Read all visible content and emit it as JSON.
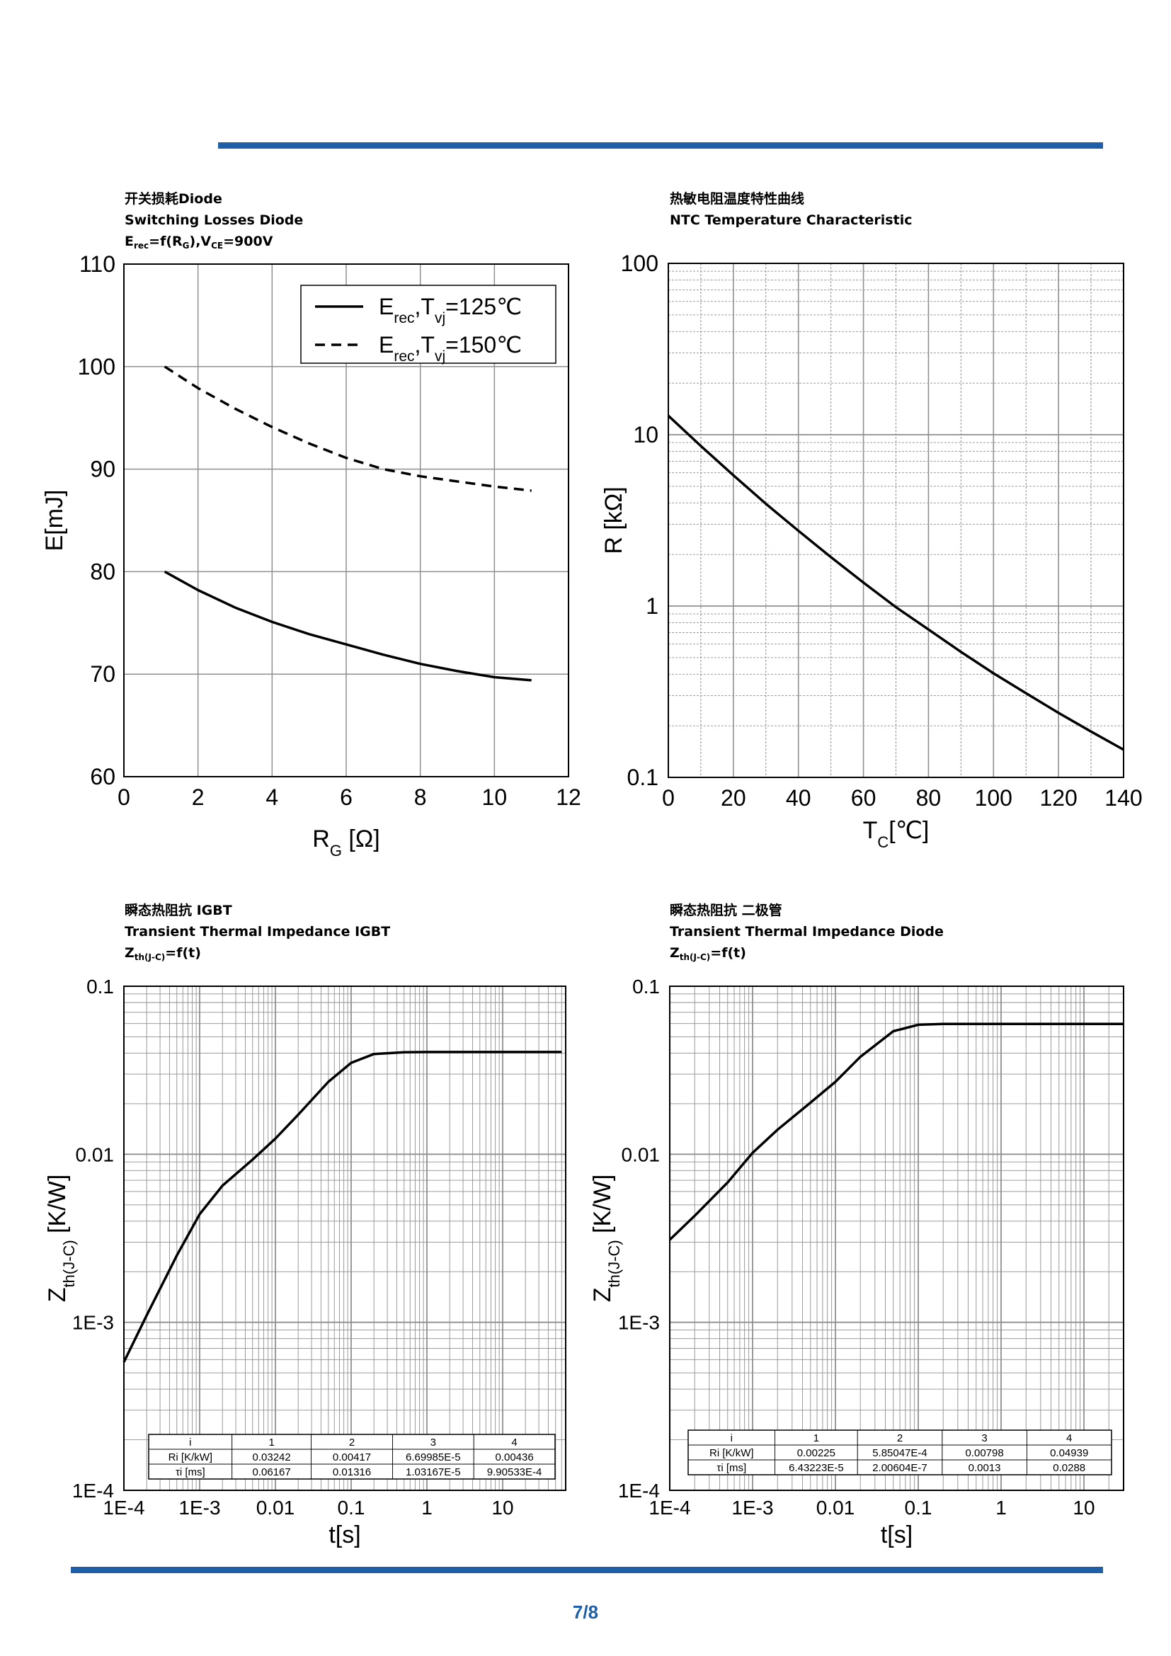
{
  "page_number": "7/8",
  "colors": {
    "rule": "#1f5fa7",
    "grid": "#8f8f8f",
    "curve": "#000000",
    "page_number": "#1f5fa7"
  },
  "chart1": {
    "cn_title": "开关损耗Diode",
    "en_title": "Switching Losses Diode",
    "formula": {
      "a": "E",
      "a_sub": "rec",
      "b": "=f(R",
      "b_sub": "G",
      "c": "),V",
      "c_sub": "CE",
      "d": "=900V"
    }
  },
  "chart2": {
    "cn_title": "热敏电阻温度特性曲线",
    "en_title": "NTC Temperature Characteristic"
  },
  "chart3": {
    "cn_title": "瞬态热阻抗 IGBT",
    "en_title": "Transient Thermal Impedance IGBT",
    "formula": {
      "a": "Z",
      "a_sub": "th(J-C)",
      "b": "=f(t)"
    }
  },
  "chart4": {
    "cn_title": "瞬态热阻抗 二极管",
    "en_title": "Transient Thermal Impedance Diode",
    "formula": {
      "a": "Z",
      "a_sub": "th(J-C)",
      "b": "=f(t)"
    }
  },
  "chart_data": [
    {
      "type": "line",
      "title": "Switching Losses Diode",
      "xlabel": "R",
      "xlabel_sub": "G",
      "xlabel_unit": " [Ω]",
      "ylabel": "E[mJ]",
      "xlim": [
        0,
        12
      ],
      "ylim": [
        60,
        110
      ],
      "xticks": [
        "0",
        "2",
        "4",
        "6",
        "8",
        "10",
        "12"
      ],
      "yticks": [
        "60",
        "70",
        "80",
        "90",
        "100",
        "110"
      ],
      "legend_position": "top-right",
      "series": [
        {
          "name": "Erec,Tvj=125℃",
          "legend": {
            "a": "E",
            "a_sub": "rec",
            "b": ",T",
            "b_sub": "vj",
            "c": "=125℃"
          },
          "style": "solid",
          "x": [
            1.1,
            2,
            3,
            4,
            5,
            6,
            7,
            8,
            9,
            10,
            11
          ],
          "y": [
            80.0,
            78.2,
            76.5,
            75.1,
            73.9,
            72.9,
            71.9,
            71.0,
            70.3,
            69.7,
            69.4
          ]
        },
        {
          "name": "Erec,Tvj=150℃",
          "legend": {
            "a": "E",
            "a_sub": "rec",
            "b": ",T",
            "b_sub": "vj",
            "c": "=150℃"
          },
          "style": "dashed",
          "x": [
            1.1,
            2,
            3,
            4,
            5,
            6,
            7,
            8,
            9,
            10,
            11
          ],
          "y": [
            100.0,
            97.9,
            95.9,
            94.1,
            92.5,
            91.1,
            90.0,
            89.3,
            88.8,
            88.3,
            87.9
          ]
        }
      ]
    },
    {
      "type": "line",
      "title": "NTC Temperature Characteristic",
      "xlabel": "T",
      "xlabel_sub": "C",
      "xlabel_unit": "[℃]",
      "ylabel": "R [kΩ]",
      "xlim": [
        0,
        140
      ],
      "ylim": [
        0.1,
        100
      ],
      "yscale": "log",
      "xticks": [
        "0",
        "20",
        "40",
        "60",
        "80",
        "100",
        "120",
        "140"
      ],
      "yticks": [
        "0.1",
        "1",
        "10",
        "100"
      ],
      "series": [
        {
          "name": "R",
          "style": "solid",
          "x": [
            0,
            10,
            20,
            30,
            40,
            50,
            60,
            70,
            80,
            90,
            100,
            110,
            120,
            130,
            140
          ],
          "y": [
            12.9,
            8.6,
            5.8,
            3.95,
            2.75,
            1.93,
            1.37,
            0.985,
            0.73,
            0.54,
            0.405,
            0.31,
            0.238,
            0.185,
            0.145
          ]
        }
      ]
    },
    {
      "type": "line",
      "title": "Transient Thermal Impedance IGBT",
      "xlabel": "t[s]",
      "ylabel": "Z",
      "ylabel_sub": "th(J-C)",
      "ylabel_unit": " [K/W]",
      "xscale": "log",
      "yscale": "log",
      "xlim": [
        0.0001,
        60
      ],
      "ylim": [
        0.0001,
        0.1
      ],
      "xticks": [
        "1E-4",
        "1E-3",
        "0.01",
        "0.1",
        "1",
        "10"
      ],
      "yticks": [
        "1E-4",
        "1E-3",
        "0.01",
        "0.1"
      ],
      "series": [
        {
          "name": "Zth(J-C)",
          "style": "solid",
          "x": [
            0.0001,
            0.0002,
            0.0005,
            0.001,
            0.002,
            0.005,
            0.01,
            0.02,
            0.05,
            0.1,
            0.2,
            0.5,
            1,
            2,
            5,
            10,
            20,
            60
          ],
          "y": [
            0.00058,
            0.0011,
            0.0025,
            0.0044,
            0.0065,
            0.0093,
            0.0124,
            0.0172,
            0.027,
            0.035,
            0.0395,
            0.0405,
            0.0406,
            0.0406,
            0.0406,
            0.0406,
            0.0406,
            0.0406
          ]
        }
      ],
      "table": {
        "header": [
          "i",
          "1",
          "2",
          "3",
          "4"
        ],
        "rows": [
          [
            "Ri [K/kW]",
            "0.03242",
            "0.00417",
            "6.69985E-5",
            "0.00436"
          ],
          [
            "τi [ms]",
            "0.06167",
            "0.01316",
            "1.03167E-5",
            "9.90533E-4"
          ]
        ]
      }
    },
    {
      "type": "line",
      "title": "Transient Thermal Impedance Diode",
      "xlabel": "t[s]",
      "ylabel": "Z",
      "ylabel_sub": "th(J-C)",
      "ylabel_unit": " [K/W]",
      "xscale": "log",
      "yscale": "log",
      "xlim": [
        0.0001,
        30
      ],
      "ylim": [
        0.0001,
        0.1
      ],
      "xticks": [
        "1E-4",
        "1E-3",
        "0.01",
        "0.1",
        "1",
        "10"
      ],
      "yticks": [
        "1E-4",
        "1E-3",
        "0.01",
        "0.1"
      ],
      "series": [
        {
          "name": "Zth(J-C)",
          "style": "solid",
          "x": [
            0.0001,
            0.0002,
            0.0005,
            0.001,
            0.002,
            0.005,
            0.01,
            0.02,
            0.05,
            0.1,
            0.2,
            0.5,
            1,
            2,
            5,
            10,
            30
          ],
          "y": [
            0.0031,
            0.0043,
            0.0068,
            0.0102,
            0.014,
            0.0203,
            0.027,
            0.038,
            0.054,
            0.059,
            0.0596,
            0.0596,
            0.0596,
            0.0596,
            0.0596,
            0.0596,
            0.0596
          ]
        }
      ],
      "table": {
        "header": [
          "i",
          "1",
          "2",
          "3",
          "4"
        ],
        "rows": [
          [
            "Ri [K/kW]",
            "0.00225",
            "5.85047E-4",
            "0.00798",
            "0.04939"
          ],
          [
            "τi [ms]",
            "6.43223E-5",
            "2.00604E-7",
            "0.0013",
            "0.0288"
          ]
        ]
      }
    }
  ]
}
